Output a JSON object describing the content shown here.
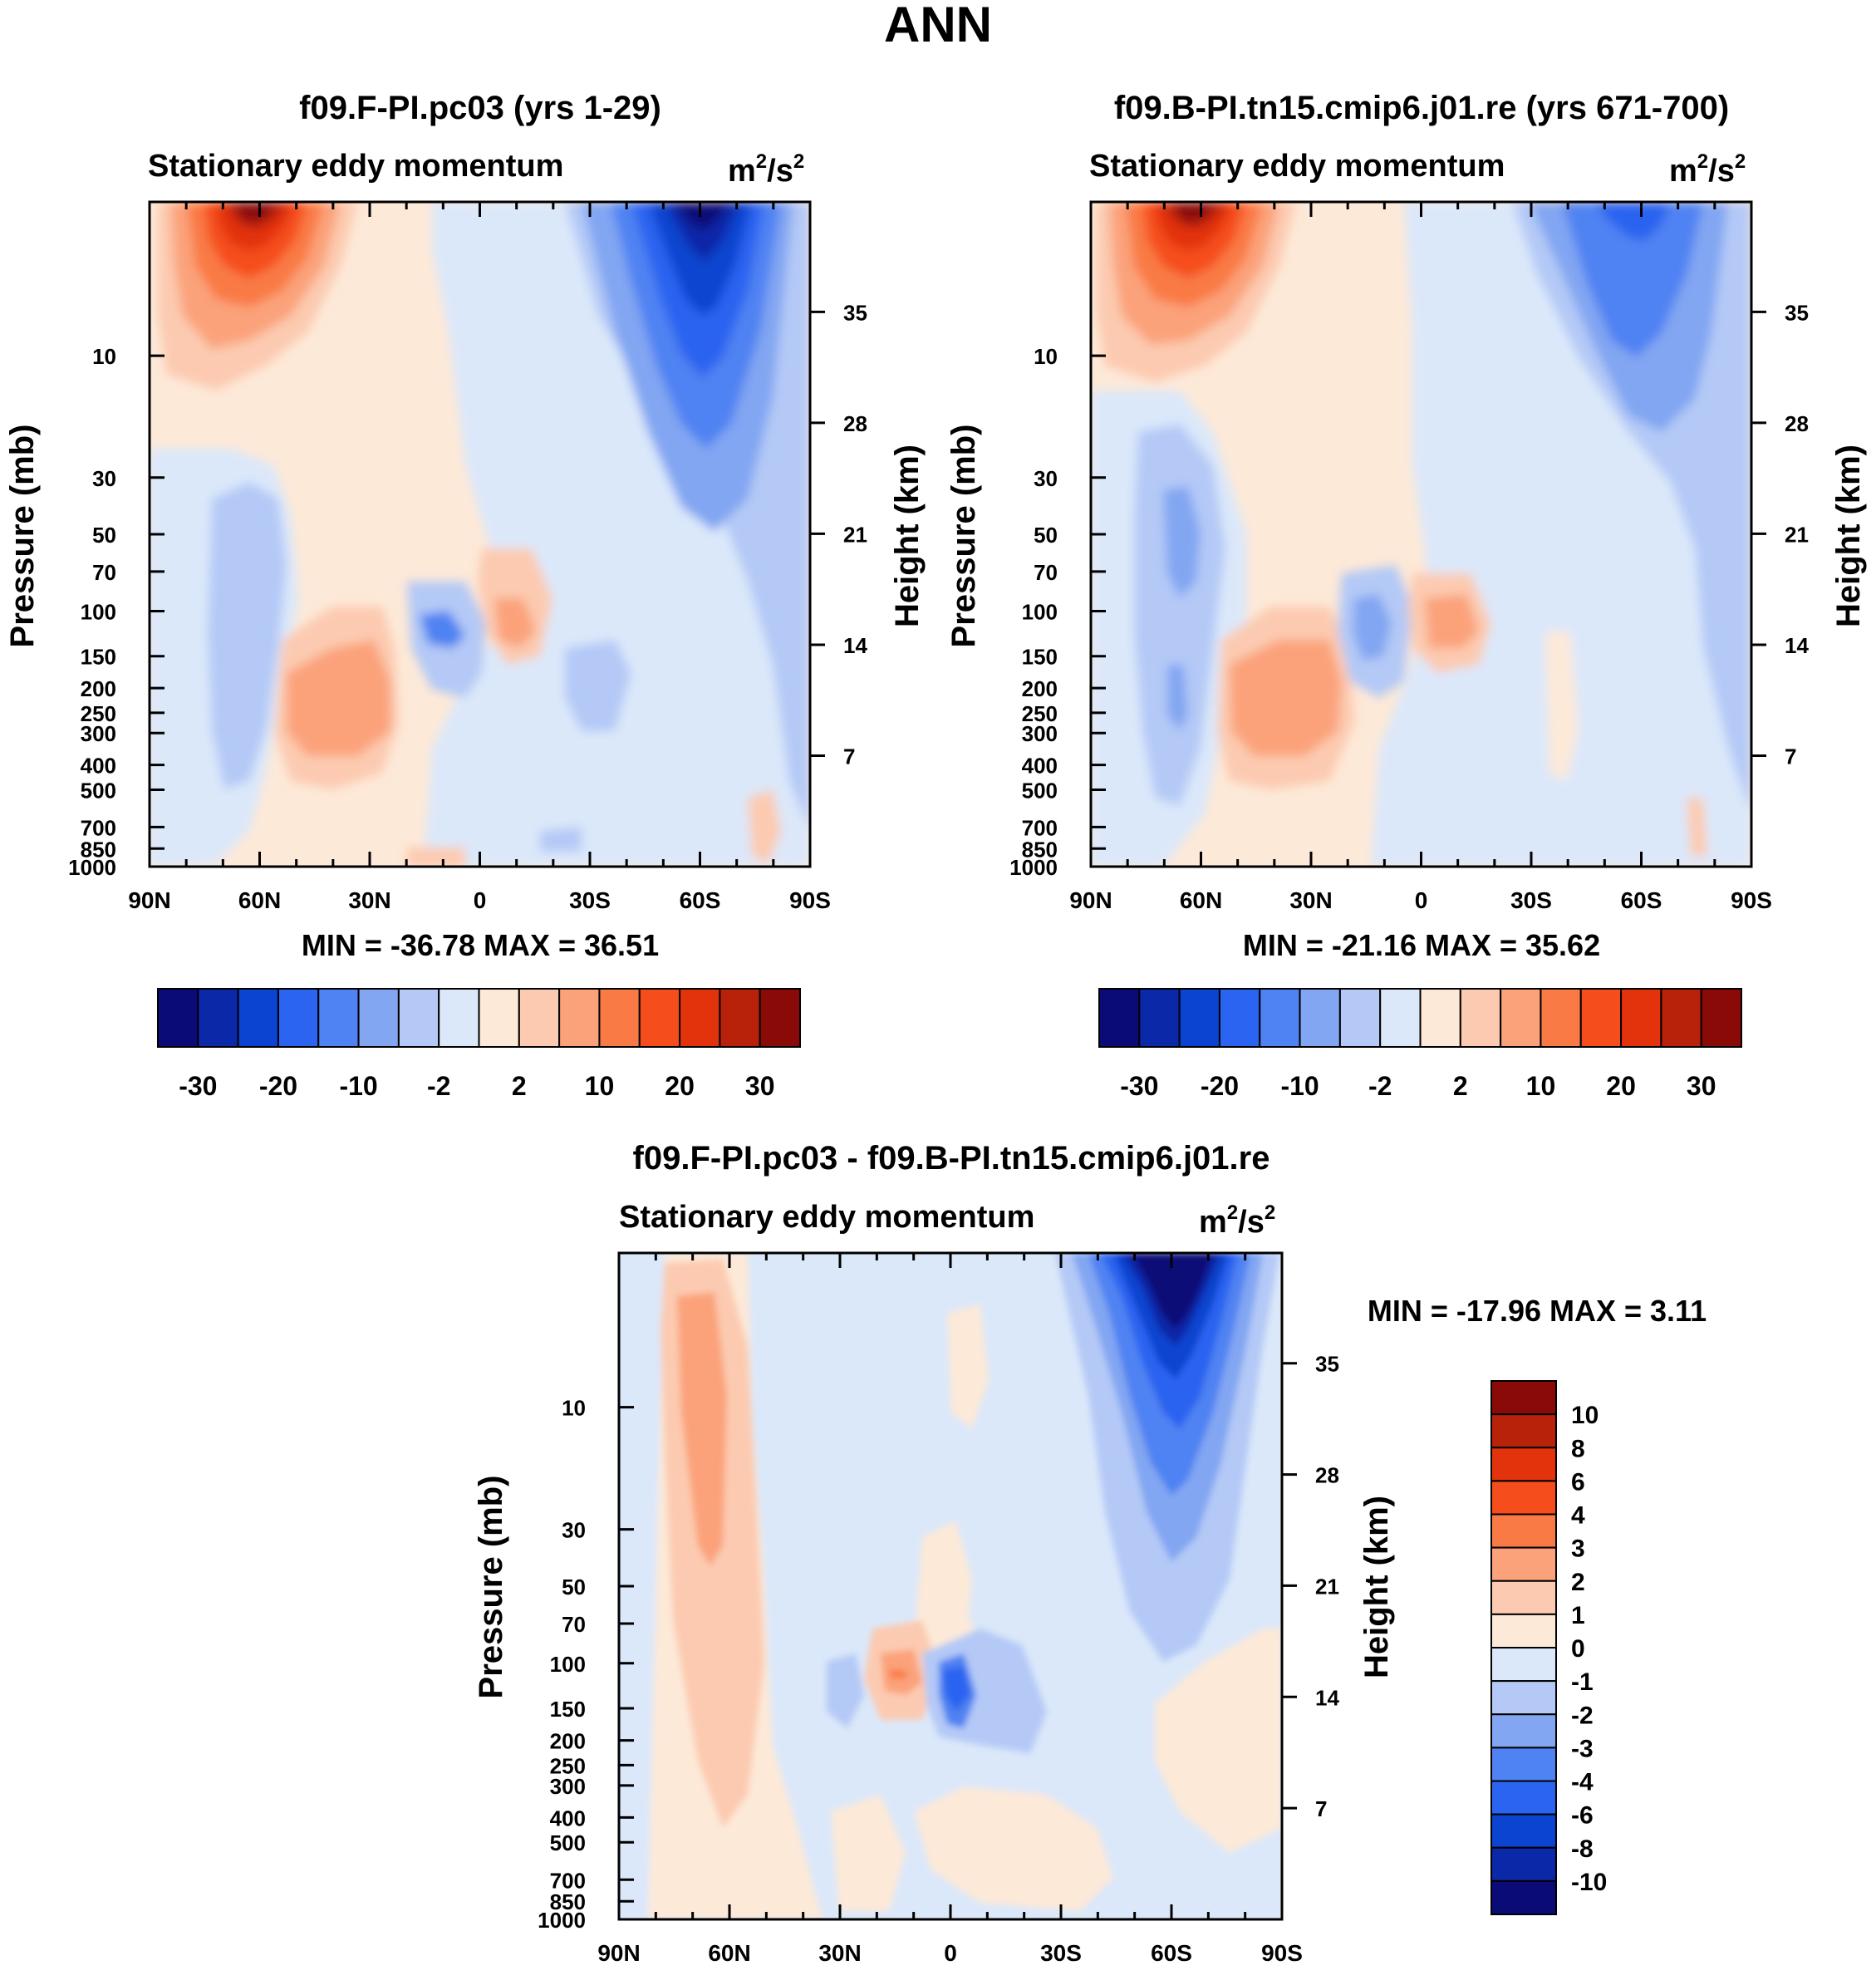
{
  "figure_title": "ANN",
  "units": {
    "base": "m",
    "exp1": "2",
    "sep": "/s",
    "exp2": "2"
  },
  "field_label": "Stationary eddy momentum",
  "y_left_label": "Pressure (mb)",
  "y_right_label": "Height (km)",
  "chart_data": [
    {
      "type": "heatmap",
      "id": "p1",
      "title": "f09.F-PI.pc03 (yrs 1-29)",
      "subtitle": "Stationary eddy momentum",
      "units": "m2/s2",
      "xlabel": "",
      "ylabel": "Pressure (mb)",
      "y2label": "Height (km)",
      "x_ticks": [
        "90N",
        "60N",
        "30N",
        "0",
        "30S",
        "60S",
        "90S"
      ],
      "x_values": [
        90,
        60,
        30,
        0,
        -30,
        -60,
        -90
      ],
      "y_ticks": [
        "10",
        "30",
        "50",
        "70",
        "100",
        "150",
        "200",
        "250",
        "300",
        "400",
        "500",
        "700",
        "850",
        "1000"
      ],
      "y2_ticks": [
        "35",
        "28",
        "21",
        "14",
        "7"
      ],
      "min_label": "MIN = -36.78  MAX =  36.51",
      "min": -36.78,
      "max": 36.51,
      "features": [
        {
          "lat": 60,
          "p": 4,
          "value": 36.5
        },
        {
          "lat": -60,
          "p": 4,
          "value": -36.8
        },
        {
          "lat": 48,
          "p": 300,
          "value": 5
        },
        {
          "lat": 0,
          "p": 150,
          "value": -5
        },
        {
          "lat": -10,
          "p": 150,
          "value": 8
        },
        {
          "lat": 60,
          "p": 80,
          "value": -2
        }
      ]
    },
    {
      "type": "heatmap",
      "id": "p2",
      "title": "f09.B-PI.tn15.cmip6.j01.re (yrs 671-700)",
      "subtitle": "Stationary eddy momentum",
      "units": "m2/s2",
      "xlabel": "",
      "ylabel": "Pressure (mb)",
      "y2label": "Height (km)",
      "x_ticks": [
        "90N",
        "60N",
        "30N",
        "0",
        "30S",
        "60S",
        "90S"
      ],
      "x_values": [
        90,
        60,
        30,
        0,
        -30,
        -60,
        -90
      ],
      "y_ticks": [
        "10",
        "30",
        "50",
        "70",
        "100",
        "150",
        "200",
        "250",
        "300",
        "400",
        "500",
        "700",
        "850",
        "1000"
      ],
      "y2_ticks": [
        "35",
        "28",
        "21",
        "14",
        "7"
      ],
      "min_label": "MIN = -21.16  MAX =  35.62",
      "min": -21.16,
      "max": 35.62,
      "features": [
        {
          "lat": 60,
          "p": 4,
          "value": 35.6
        },
        {
          "lat": -58,
          "p": 4,
          "value": -21.2
        },
        {
          "lat": 30,
          "p": 300,
          "value": 5
        },
        {
          "lat": 10,
          "p": 150,
          "value": -5
        },
        {
          "lat": -8,
          "p": 150,
          "value": 5
        },
        {
          "lat": 64,
          "p": 80,
          "value": -10
        }
      ]
    },
    {
      "type": "heatmap",
      "id": "p3",
      "title": "f09.F-PI.pc03 - f09.B-PI.tn15.cmip6.j01.re",
      "subtitle": "Stationary eddy momentum",
      "units": "m2/s2",
      "xlabel": "",
      "ylabel": "Pressure (mb)",
      "y2label": "Height (km)",
      "x_ticks": [
        "90N",
        "60N",
        "30N",
        "0",
        "30S",
        "60S",
        "90S"
      ],
      "x_values": [
        90,
        60,
        30,
        0,
        -30,
        -60,
        -90
      ],
      "y_ticks": [
        "10",
        "30",
        "50",
        "70",
        "100",
        "150",
        "200",
        "250",
        "300",
        "400",
        "500",
        "700",
        "850",
        "1000"
      ],
      "y2_ticks": [
        "35",
        "28",
        "21",
        "14",
        "7"
      ],
      "min_label": "MIN = -17.96  MAX =    3.11",
      "min": -17.96,
      "max": 3.11,
      "features": [
        {
          "lat": -62,
          "p": 4,
          "value": -17.96
        },
        {
          "lat": 68,
          "p": 20,
          "value": 2
        },
        {
          "lat": 15,
          "p": 150,
          "value": 3.11
        },
        {
          "lat": 0,
          "p": 150,
          "value": -4
        },
        {
          "lat": 30,
          "p": 180,
          "value": -2
        }
      ]
    }
  ],
  "colorbar_main": {
    "labels": [
      "-30",
      "-20",
      "-10",
      "-2",
      "2",
      "10",
      "20",
      "30"
    ],
    "colors": [
      "#0b0b78",
      "#0a28a8",
      "#0a44d0",
      "#2a64f0",
      "#4f82f2",
      "#82a6f2",
      "#b4c9f6",
      "#dbe8fa",
      "#fde9d8",
      "#fccab0",
      "#fba27a",
      "#f97a44",
      "#f54e1c",
      "#e2330c",
      "#b8220a",
      "#8a0a08"
    ]
  },
  "colorbar_diff": {
    "labels": [
      "10",
      "8",
      "6",
      "4",
      "3",
      "2",
      "1",
      "0",
      "-1",
      "-2",
      "-3",
      "-4",
      "-6",
      "-8",
      "-10"
    ],
    "colors": [
      "#8a0a08",
      "#b8220a",
      "#e2330c",
      "#f54e1c",
      "#f97a44",
      "#fba27a",
      "#fccab0",
      "#fde9d8",
      "#dbe8fa",
      "#b4c9f6",
      "#82a6f2",
      "#4f82f2",
      "#2a64f0",
      "#0a44d0",
      "#0a28a8",
      "#0b0b78"
    ]
  }
}
